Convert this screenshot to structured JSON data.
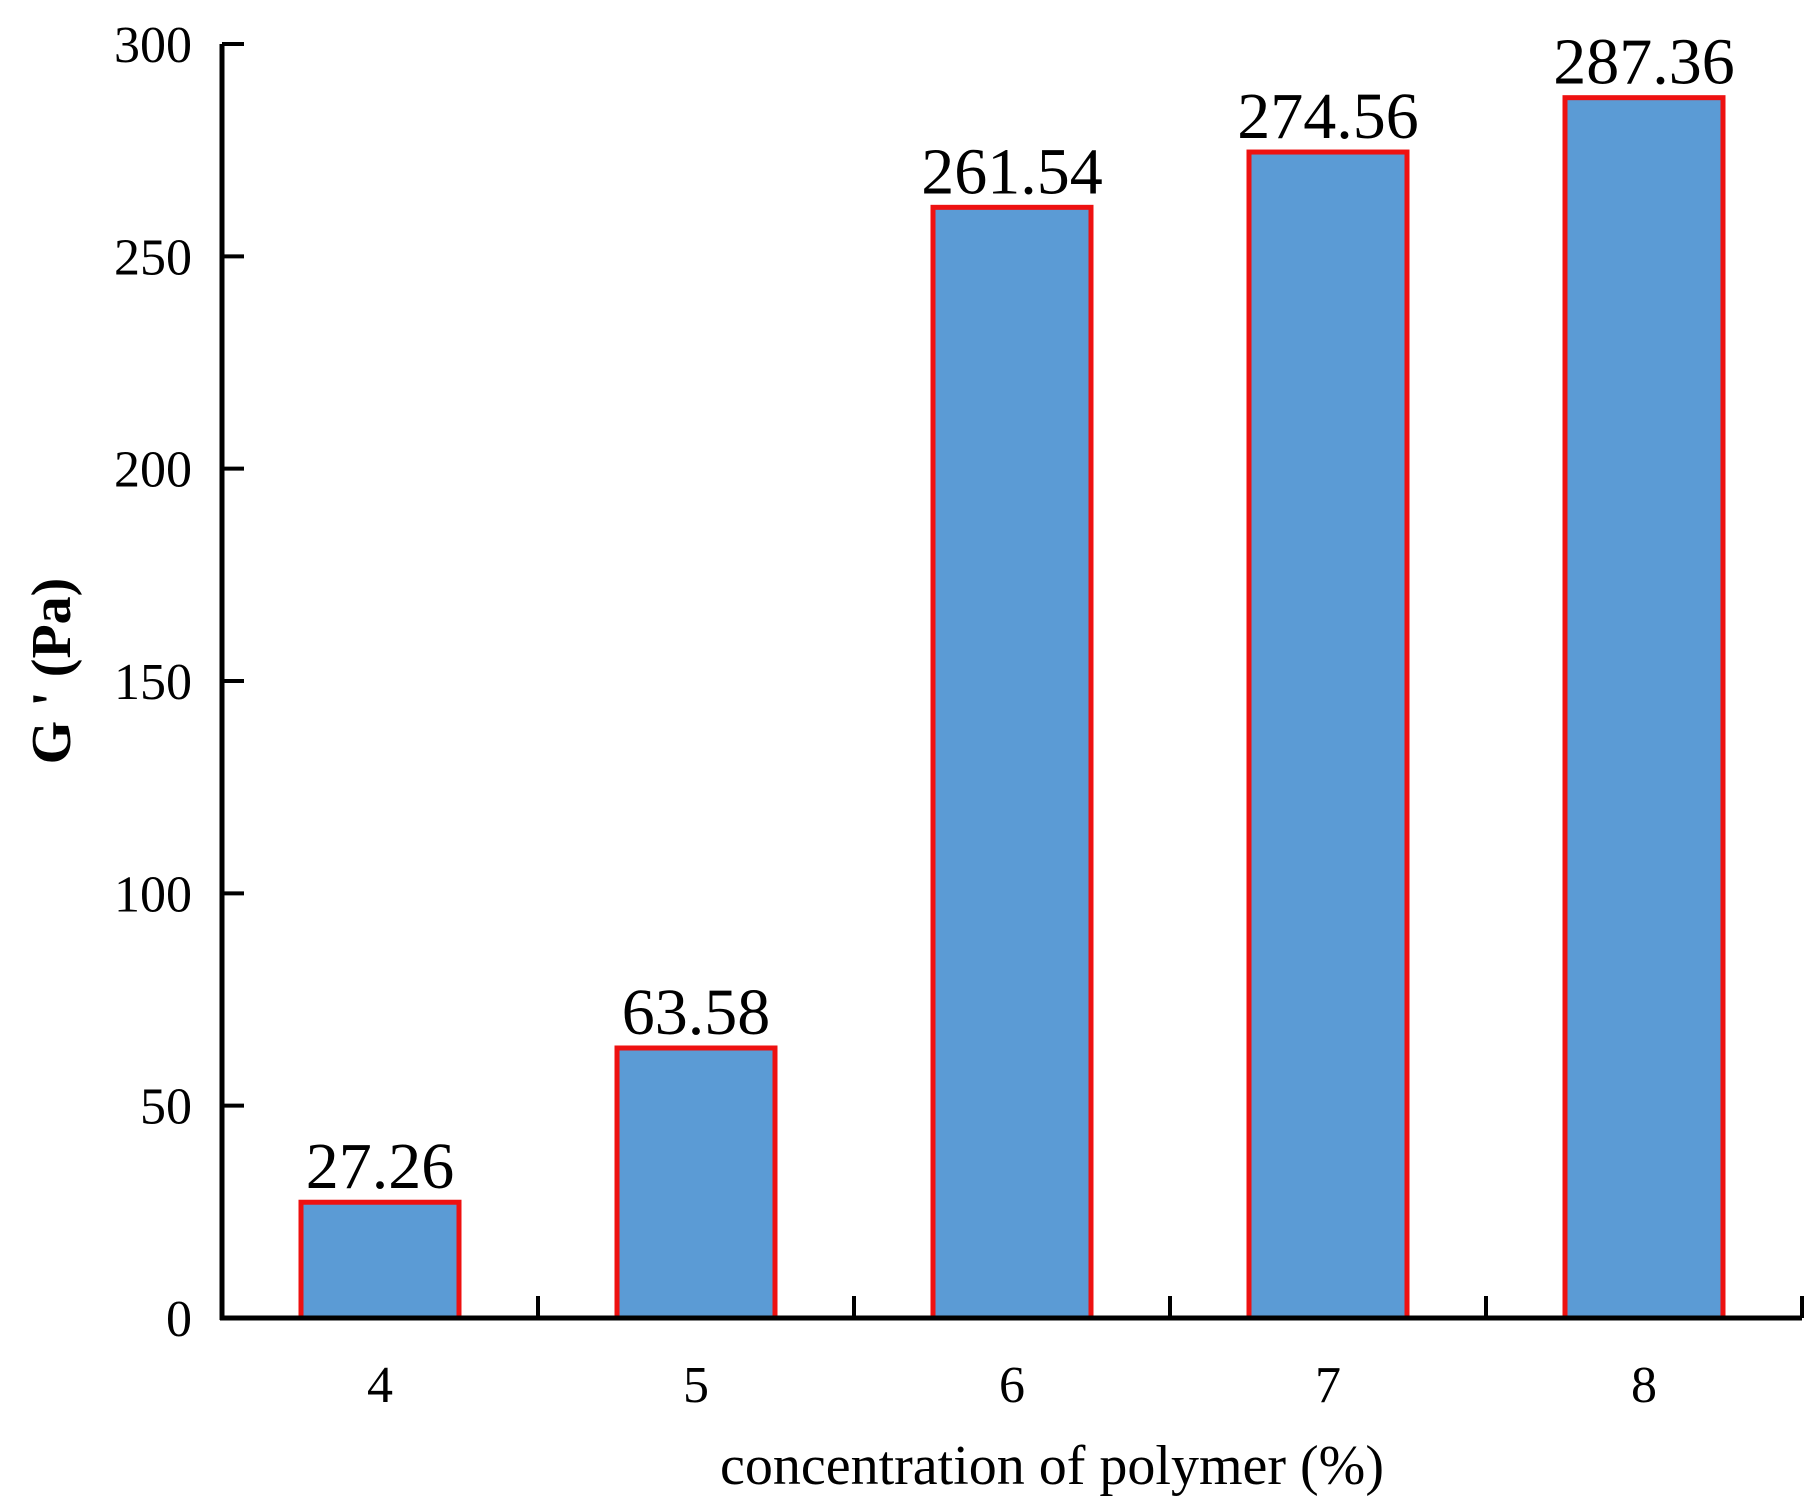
{
  "chart_data": {
    "type": "bar",
    "categories": [
      "4",
      "5",
      "6",
      "7",
      "8"
    ],
    "values": [
      27.26,
      63.58,
      261.54,
      274.56,
      287.36
    ],
    "value_labels": [
      "27.26",
      "63.58",
      "261.54",
      "274.56",
      "287.36"
    ],
    "xlabel": "concentration of polymer (%)",
    "ylabel": "G ' (Pa)",
    "ylim": [
      0,
      300
    ],
    "yticks": [
      0,
      50,
      100,
      150,
      200,
      250,
      300
    ],
    "ytick_labels": [
      "0",
      "50",
      "100",
      "150",
      "200",
      "250",
      "300"
    ],
    "grid": false,
    "colors": {
      "bar_fill": "#5b9bd5",
      "bar_edge": "#ee1111"
    }
  }
}
